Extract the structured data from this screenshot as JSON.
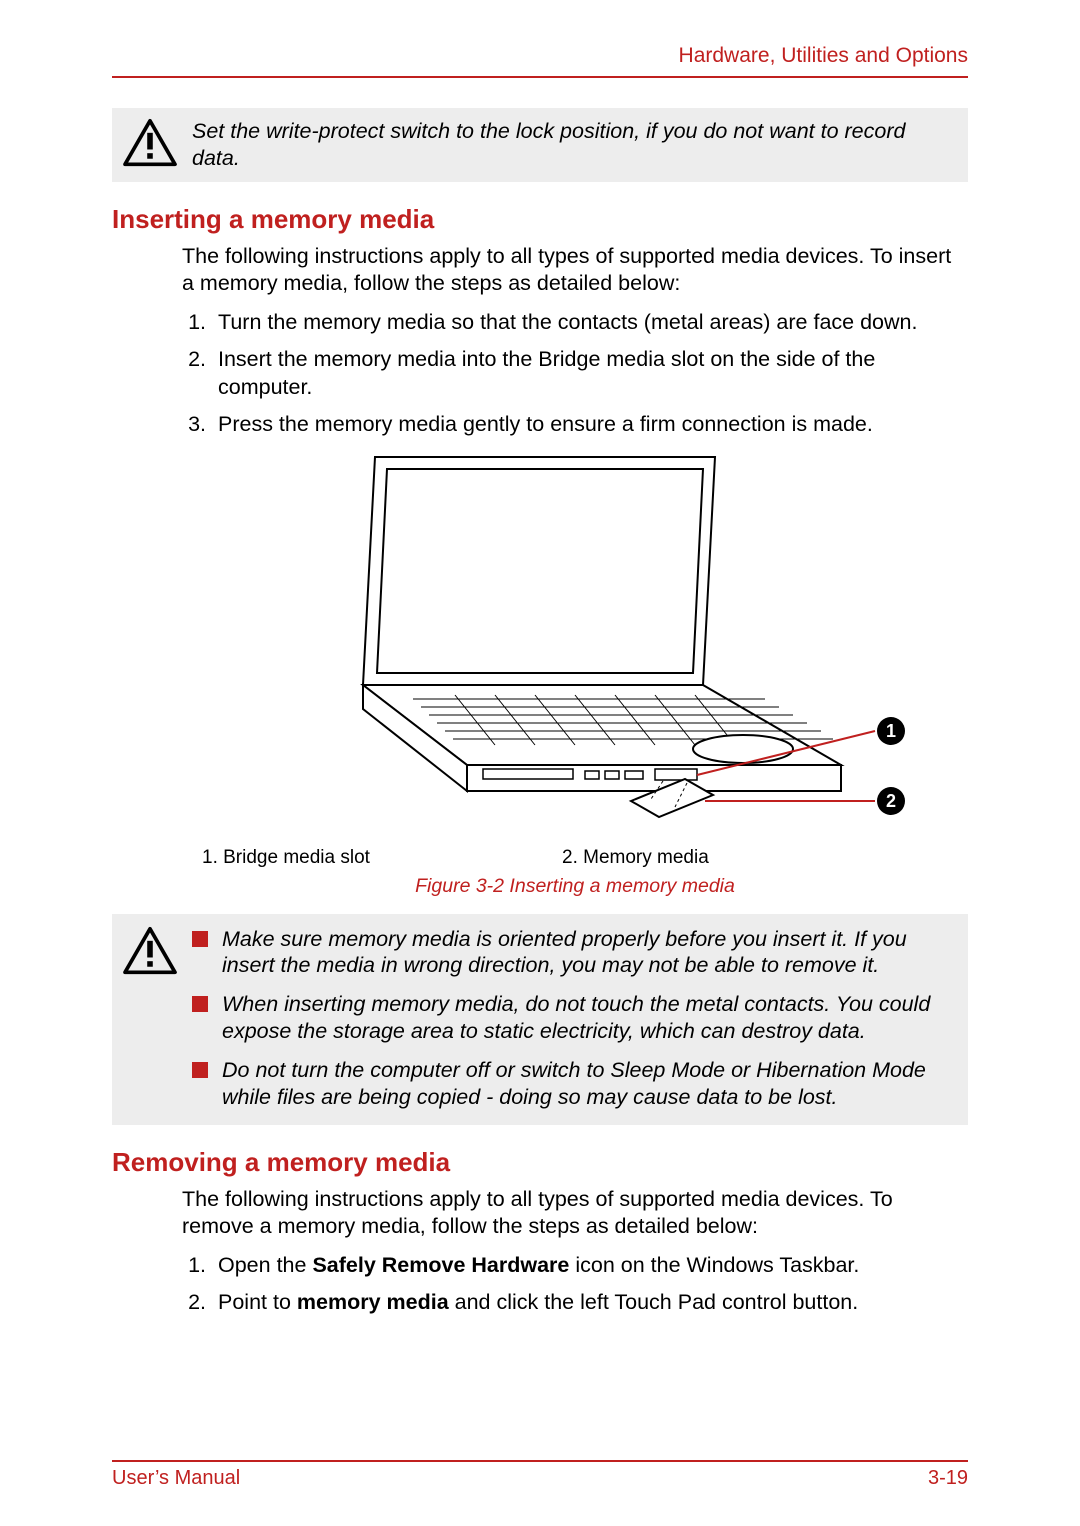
{
  "running_head": "Hardware, Utilities and Options",
  "accent_color": "#c0201f",
  "caution1": {
    "icon_name": "warning-icon",
    "text": "Set the write-protect switch to the lock position, if you do not want to record data."
  },
  "section_insert": {
    "heading": "Inserting a memory media",
    "intro": "The following instructions apply to all types of supported media devices. To insert a memory media, follow the steps as detailed below:",
    "steps": [
      "Turn the memory media so that the contacts (metal areas) are face down.",
      "Insert the memory media into the Bridge media slot on the side of the computer.",
      "Press the memory media gently to ensure a firm connection is made."
    ]
  },
  "figure": {
    "callout_1": "1",
    "callout_2": "2",
    "legend_1": "1. Bridge media slot",
    "legend_2": "2. Memory media",
    "caption": "Figure 3-2 Inserting a memory media",
    "colors": {
      "stroke": "#000000",
      "fill": "#ffffff",
      "callout_bg": "#000000",
      "callout_fg": "#ffffff",
      "leader": "#c0201f"
    }
  },
  "caution2": {
    "icon_name": "warning-icon",
    "items": [
      "Make sure memory media is oriented properly before you insert it. If you insert the media in wrong direction, you may not be able to remove it.",
      "When inserting memory media, do not touch the metal contacts. You could expose the storage area to static electricity, which can destroy data.",
      "Do not turn the computer off or switch to Sleep Mode or Hibernation Mode while files are being copied - doing so may cause data to be lost."
    ]
  },
  "section_remove": {
    "heading": "Removing a memory media",
    "intro": "The following instructions apply to all types of supported media devices. To remove a memory media, follow the steps as detailed below:",
    "steps_html": [
      "Open the <b>Safely Remove Hardware</b> icon on the Windows Taskbar.",
      "Point to <b>memory media</b> and click the left Touch Pad control button."
    ]
  },
  "footer": {
    "left": "User’s Manual",
    "right": "3-19"
  }
}
